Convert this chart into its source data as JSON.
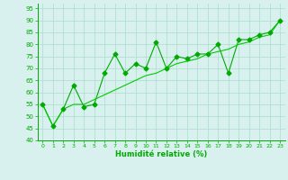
{
  "x": [
    0,
    1,
    2,
    3,
    4,
    5,
    6,
    7,
    8,
    9,
    10,
    11,
    12,
    13,
    14,
    15,
    16,
    17,
    18,
    19,
    20,
    21,
    22,
    23
  ],
  "y_scatter": [
    55,
    46,
    53,
    63,
    54,
    55,
    68,
    76,
    68,
    72,
    70,
    81,
    70,
    75,
    74,
    76,
    76,
    80,
    68,
    82,
    82,
    84,
    85,
    90
  ],
  "y_trend": [
    55,
    46,
    53,
    55,
    55,
    57,
    59,
    61,
    63,
    65,
    67,
    68,
    70,
    72,
    73,
    74,
    76,
    77,
    78,
    80,
    81,
    83,
    84,
    90
  ],
  "ylim": [
    40,
    97
  ],
  "xlim": [
    -0.5,
    23.5
  ],
  "yticks": [
    40,
    45,
    50,
    55,
    60,
    65,
    70,
    75,
    80,
    85,
    90,
    95
  ],
  "xticks": [
    0,
    1,
    2,
    3,
    4,
    5,
    6,
    7,
    8,
    9,
    10,
    11,
    12,
    13,
    14,
    15,
    16,
    17,
    18,
    19,
    20,
    21,
    22,
    23
  ],
  "xlabel": "Humidité relative (%)",
  "line_color": "#00aa00",
  "scatter_color": "#00aa00",
  "trend_color": "#00cc00",
  "bg_color": "#d8f0ee",
  "grid_color": "#aaddcc"
}
